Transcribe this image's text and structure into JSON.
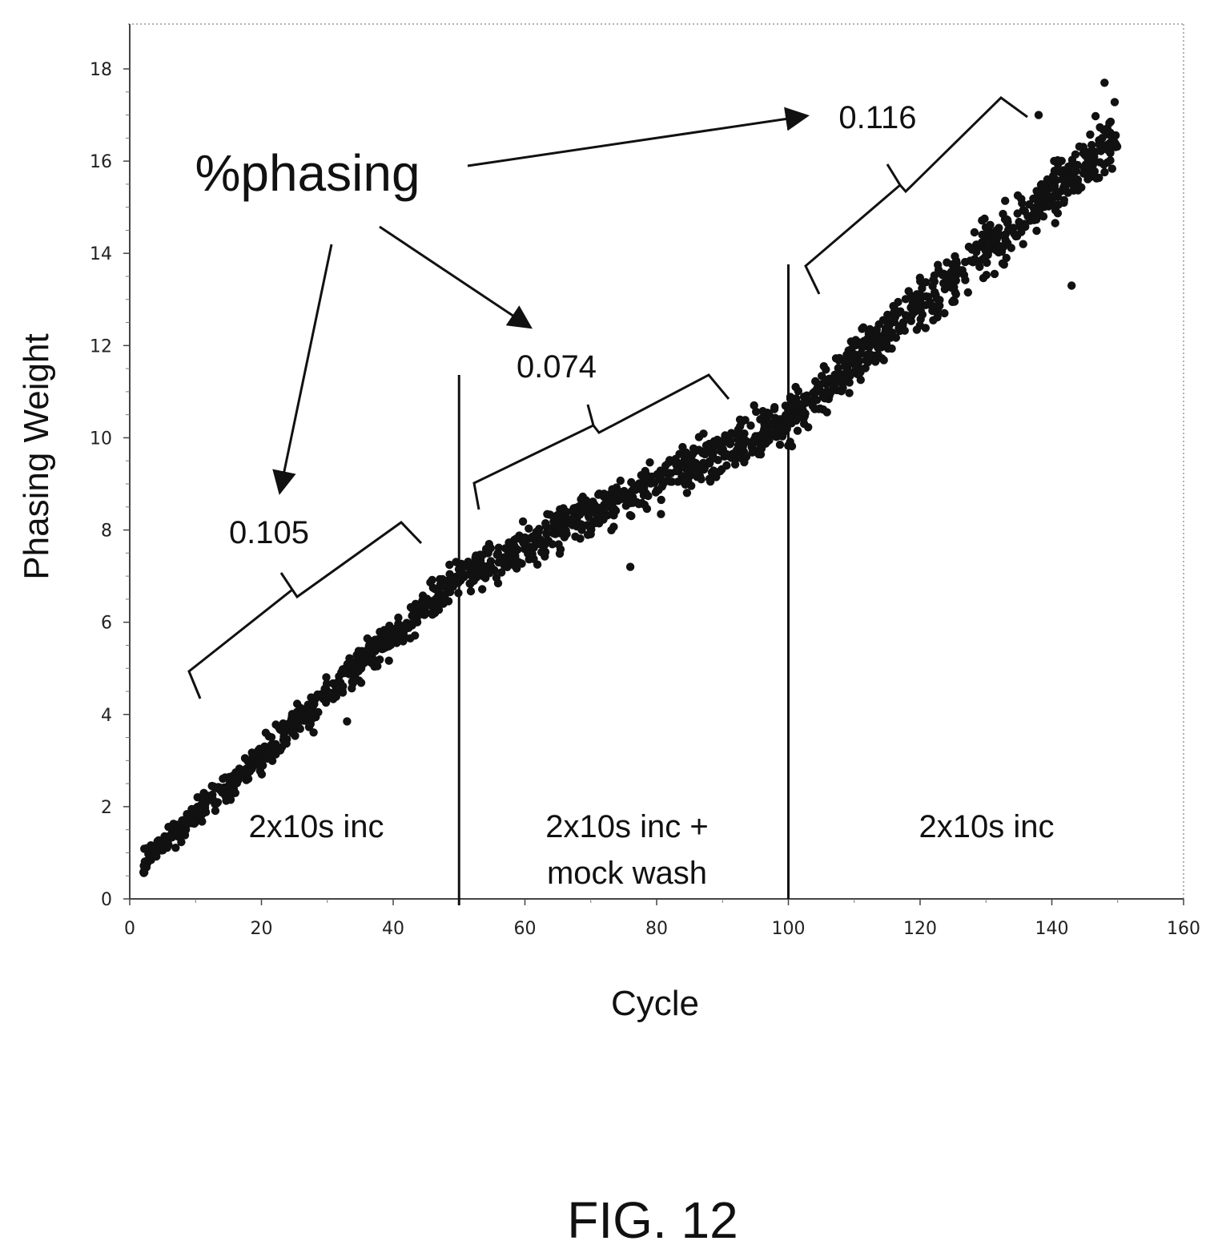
{
  "chart_data": {
    "type": "scatter",
    "xlabel": "Cycle",
    "ylabel": "Phasing Weight",
    "xlim": [
      0,
      160
    ],
    "ylim": [
      0,
      18
    ],
    "x_ticks": [
      0,
      20,
      40,
      60,
      80,
      100,
      120,
      140,
      160
    ],
    "y_ticks": [
      0,
      2,
      4,
      6,
      8,
      10,
      12,
      14,
      16,
      18
    ],
    "grid": false,
    "marker_color": "#111111",
    "trend": {
      "segments": [
        {
          "x_start": 2,
          "x_end": 50,
          "y_start": 0.8,
          "y_end": 7.0
        },
        {
          "x_start": 50,
          "x_end": 100,
          "y_start": 7.0,
          "y_end": 10.4
        },
        {
          "x_start": 100,
          "x_end": 150,
          "y_start": 10.4,
          "y_end": 16.6
        }
      ],
      "spread": 0.45
    },
    "outliers": [
      {
        "x": 33,
        "y": 3.85
      },
      {
        "x": 143,
        "y": 13.3
      },
      {
        "x": 148,
        "y": 17.7
      },
      {
        "x": 138,
        "y": 17.0
      },
      {
        "x": 76,
        "y": 7.2
      }
    ],
    "dividers": [
      50,
      100
    ],
    "regions": [
      {
        "label_lines": [
          "2x10s inc"
        ]
      },
      {
        "label_lines": [
          "2x10s inc +",
          "mock wash"
        ]
      },
      {
        "label_lines": [
          "2x10s inc"
        ]
      }
    ],
    "annotations": {
      "heading": "%phasing",
      "values": [
        "0.105",
        "0.074",
        "0.116"
      ]
    }
  },
  "figure_label": "FIG. 12"
}
